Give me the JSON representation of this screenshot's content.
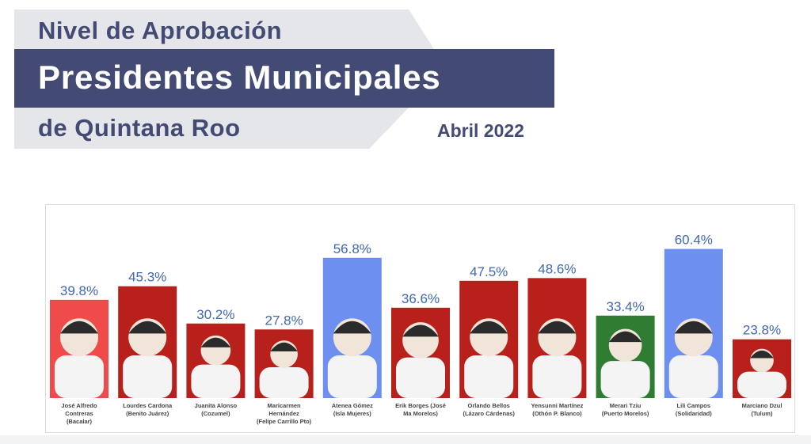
{
  "header": {
    "line1": "Nivel de Aprobación",
    "line2": "Presidentes Municipales",
    "line3": "de Quintana Roo",
    "date": "Abril 2022"
  },
  "colors": {
    "navy": "#434b74",
    "red": "#b8201b",
    "light_red": "#ef4b4b",
    "blue": "#6d8ff0",
    "green": "#2e7d32",
    "value_label": "#4267b2"
  },
  "chart_data": {
    "type": "bar",
    "ylim": [
      0,
      70
    ],
    "grid": false,
    "categories": [
      [
        "José Alfredo",
        "Contreras",
        "(Bacalar)"
      ],
      [
        "Lourdes Cardona",
        "(Benito Juárez)"
      ],
      [
        "Juanita Alonso",
        "(Cozumel)"
      ],
      [
        "Maricarmen",
        "Hernández",
        "(Felipe Carrillo Pto)"
      ],
      [
        "Atenea Gómez",
        "(Isla Mujeres)"
      ],
      [
        "Erik Borges (José",
        "Ma Morelos)"
      ],
      [
        "Orlando Bellos",
        "(Lázaro Cárdenas)"
      ],
      [
        "Yensunni Martínez",
        "(Othón P. Blanco)"
      ],
      [
        "Merari Tziu",
        "(Puerto Morelos)"
      ],
      [
        "Lili Campos",
        "(Solidaridad)"
      ],
      [
        "Marciano Dzul",
        "(Tulum)"
      ]
    ],
    "values": [
      39.8,
      45.3,
      30.2,
      27.8,
      56.8,
      36.6,
      47.5,
      48.6,
      33.4,
      60.4,
      23.8
    ],
    "value_labels": [
      "39.8%",
      "45.3%",
      "30.2%",
      "27.8%",
      "56.8%",
      "36.6%",
      "47.5%",
      "48.6%",
      "33.4%",
      "60.4%",
      "23.8%"
    ],
    "bar_colors": [
      "#ef4b4b",
      "#b8201b",
      "#b8201b",
      "#b8201b",
      "#6d8ff0",
      "#b8201b",
      "#b8201b",
      "#b8201b",
      "#2e7d32",
      "#6d8ff0",
      "#b8201b"
    ]
  }
}
